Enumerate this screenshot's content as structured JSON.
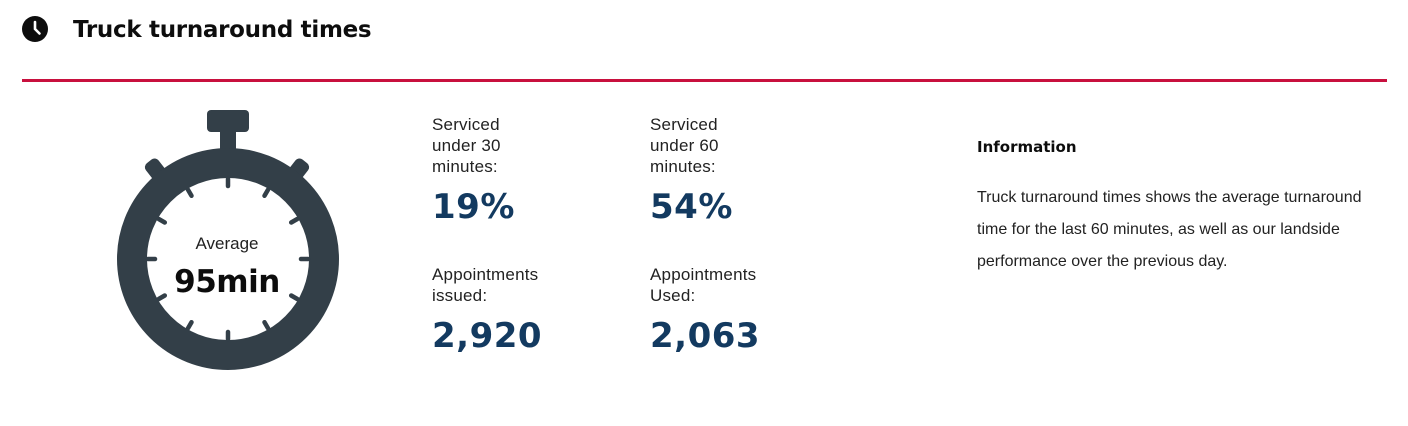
{
  "header": {
    "title": "Truck turnaround times",
    "icon": "clock-icon"
  },
  "stopwatch": {
    "icon": "stopwatch-icon",
    "color": "#333f48",
    "average_label": "Average",
    "average_value": "95min"
  },
  "stats": [
    {
      "label": "Serviced under 30 minutes:",
      "value": "19%"
    },
    {
      "label": "Serviced under 60 minutes:",
      "value": "54%"
    },
    {
      "label": "Appointments issued:",
      "value": "2,920"
    },
    {
      "label": "Appointments Used:",
      "value": "2,063"
    }
  ],
  "info": {
    "title": "Information",
    "body": "Truck turnaround times shows the average turnaround time for the last 60 minutes, as well as our landside performance over the previous day."
  },
  "colors": {
    "accent_line": "#c8103e",
    "value_text": "#133a60",
    "stopwatch": "#333f48"
  }
}
